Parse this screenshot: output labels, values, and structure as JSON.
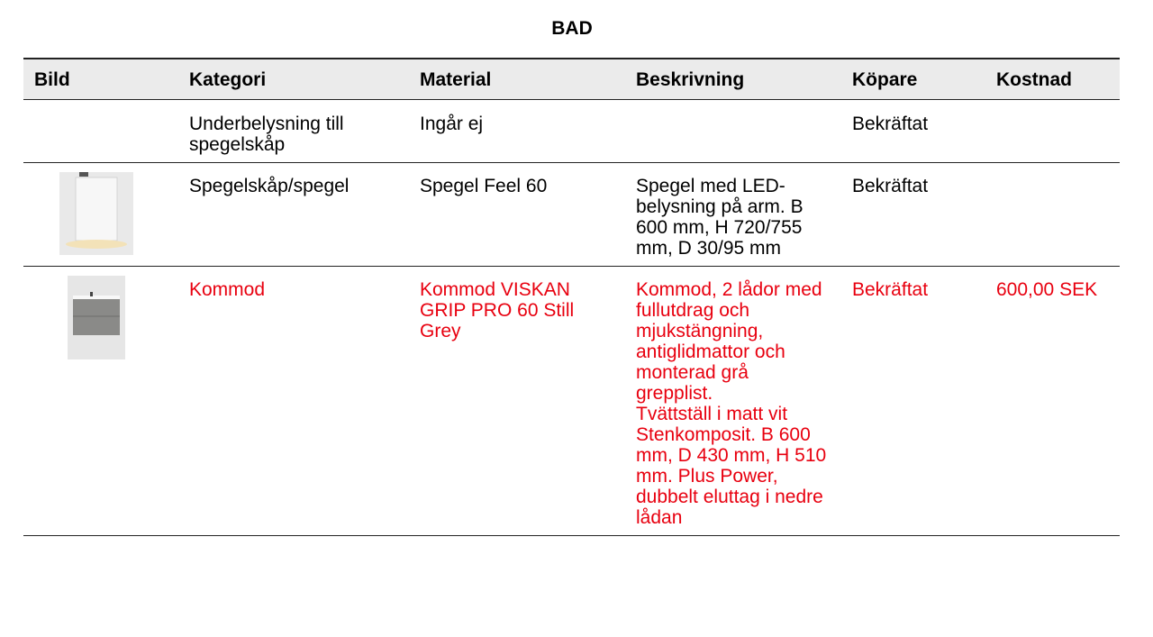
{
  "header": {
    "title": "BAD"
  },
  "table": {
    "columns": [
      "Bild",
      "Kategori",
      "Material",
      "Beskrivning",
      "Köpare",
      "Kostnad"
    ],
    "rows": [
      {
        "kategori": "Underbelysning till spegelskåp",
        "material": "Ingår ej",
        "kopare": "Bekräftat"
      },
      {
        "kategori": "Spegelskåp/spegel",
        "material": "Spegel Feel 60",
        "beskrivning": [
          "Spegel med LED-belysning på arm. B 600 mm, H 720/755 mm, D 30/95 mm"
        ],
        "kopare": "Bekräftat"
      },
      {
        "color": "#e8000f",
        "kategori": "Kommod",
        "material": "Kommod VISKAN GRIP PRO 60 Still Grey",
        "beskrivning": [
          "Kommod, 2 lådor med fullutdrag och mjukstängning, antiglidmattor och monterad grå grepplist.",
          "Tvättställ i matt vit Stenkomposit. B 600 mm, D 430 mm, H 510 mm. Plus Power, dubbelt eluttag i nedre lådan"
        ],
        "kopare": "Bekräftat",
        "kostnad": "600,00 SEK"
      }
    ]
  }
}
